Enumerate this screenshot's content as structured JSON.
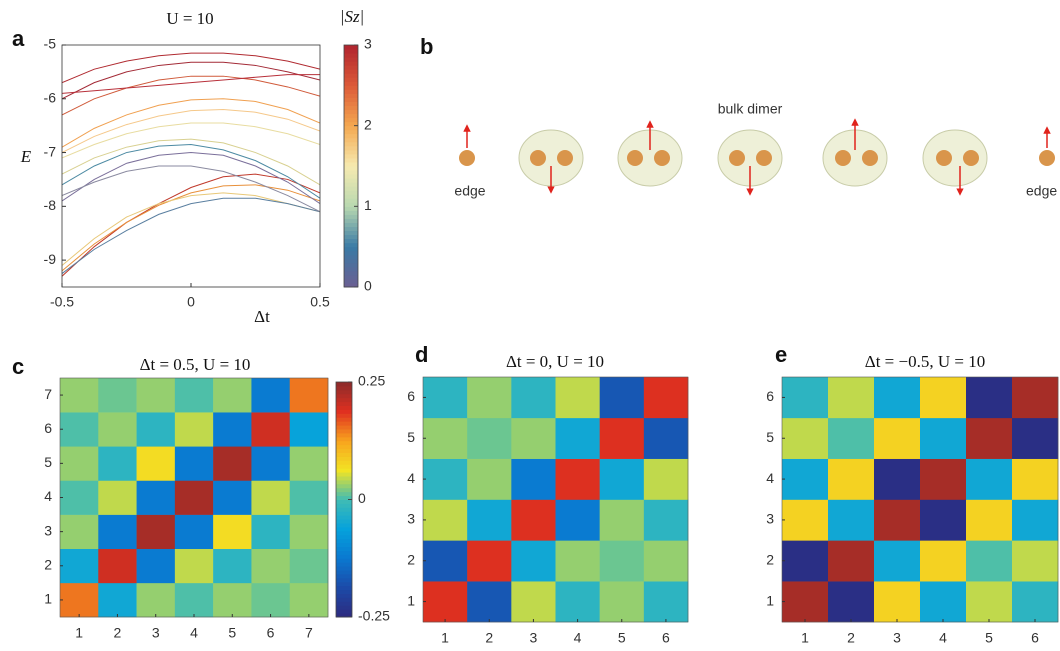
{
  "chart_data": [
    {
      "type": "line",
      "panel": "a",
      "title": "U = 10",
      "ylabel": "E",
      "xlabel": "Δt",
      "x": [
        -0.5,
        -0.375,
        -0.25,
        -0.125,
        0,
        0.125,
        0.25,
        0.375,
        0.5
      ],
      "xlim": [
        -0.5,
        0.5
      ],
      "xticks": [
        -0.5,
        0,
        0.5
      ],
      "ylim": [
        -9.5,
        -5
      ],
      "yticks": [
        -9,
        -8,
        -7,
        -6,
        -5
      ],
      "colorbar": {
        "label": "|Sz|",
        "lim": [
          0,
          3
        ],
        "ticks": [
          0,
          1,
          2,
          3
        ],
        "colormap": [
          "#6b5f92",
          "#3a7aa5",
          "#b8d8b0",
          "#f6eab0",
          "#f4a850",
          "#dc5a38",
          "#b0242e"
        ]
      },
      "series": [
        {
          "color": "#c0392b",
          "values": [
            -9.3,
            -8.75,
            -8.3,
            -7.95,
            -7.65,
            -7.45,
            -7.4,
            -7.5,
            -7.75
          ]
        },
        {
          "color": "#e8903a",
          "values": [
            -9.2,
            -8.7,
            -8.3,
            -7.98,
            -7.75,
            -7.62,
            -7.6,
            -7.7,
            -7.9
          ]
        },
        {
          "color": "#e8c878",
          "values": [
            -9.1,
            -8.6,
            -8.2,
            -7.95,
            -7.8,
            -7.75,
            -7.8,
            -7.95,
            -8.1
          ]
        },
        {
          "color": "#5a7fa0",
          "values": [
            -9.25,
            -8.8,
            -8.45,
            -8.15,
            -7.95,
            -7.85,
            -7.85,
            -7.95,
            -8.1
          ]
        },
        {
          "color": "#7a6f9a",
          "values": [
            -7.9,
            -7.5,
            -7.2,
            -7.05,
            -7.0,
            -7.05,
            -7.25,
            -7.55,
            -7.95
          ]
        },
        {
          "color": "#4c8aa3",
          "values": [
            -7.6,
            -7.25,
            -7.0,
            -6.88,
            -6.85,
            -6.95,
            -7.15,
            -7.45,
            -7.85
          ]
        },
        {
          "color": "#d8d090",
          "values": [
            -7.4,
            -7.1,
            -6.9,
            -6.78,
            -6.75,
            -6.82,
            -7.0,
            -7.25,
            -7.6
          ]
        },
        {
          "color": "#8a8aa0",
          "values": [
            -7.8,
            -7.55,
            -7.35,
            -7.25,
            -7.25,
            -7.35,
            -7.55,
            -7.8,
            -8.1
          ]
        },
        {
          "color": "#f0a050",
          "values": [
            -6.9,
            -6.55,
            -6.3,
            -6.12,
            -6.02,
            -6.0,
            -6.05,
            -6.2,
            -6.45
          ]
        },
        {
          "color": "#f5c88a",
          "values": [
            -7.0,
            -6.7,
            -6.48,
            -6.32,
            -6.22,
            -6.2,
            -6.25,
            -6.38,
            -6.6
          ]
        },
        {
          "color": "#e8dca0",
          "values": [
            -7.1,
            -6.85,
            -6.65,
            -6.52,
            -6.45,
            -6.45,
            -6.52,
            -6.65,
            -6.85
          ]
        },
        {
          "color": "#b02a30",
          "values": [
            -5.7,
            -5.45,
            -5.3,
            -5.2,
            -5.15,
            -5.15,
            -5.2,
            -5.3,
            -5.45
          ]
        },
        {
          "color": "#a32a36",
          "values": [
            -6.0,
            -5.7,
            -5.5,
            -5.38,
            -5.32,
            -5.32,
            -5.38,
            -5.5,
            -5.65
          ]
        },
        {
          "color": "#d05a3a",
          "values": [
            -6.3,
            -6.0,
            -5.8,
            -5.65,
            -5.58,
            -5.58,
            -5.65,
            -5.78,
            -5.95
          ]
        },
        {
          "color": "#b8303a",
          "values": [
            -5.9,
            -5.85,
            -5.8,
            -5.75,
            -5.7,
            -5.65,
            -5.6,
            -5.55,
            -5.55
          ]
        }
      ]
    },
    {
      "type": "heatmap",
      "panel": "c",
      "title": "Δt = 0.5, U = 10",
      "xlim": [
        0.5,
        7.5
      ],
      "ylim": [
        0.5,
        7.5
      ],
      "xticks": [
        1,
        2,
        3,
        4,
        5,
        6,
        7
      ],
      "yticks": [
        1,
        2,
        3,
        4,
        5,
        6,
        7
      ],
      "colorbar": {
        "lim": [
          -0.25,
          0.25
        ],
        "ticks": [
          0.25,
          0,
          -0.25
        ],
        "colormap": [
          "#2d2a7e",
          "#1c4aa8",
          "#0a78d0",
          "#05a2dc",
          "#40bcb4",
          "#f2e424",
          "#f8a41e",
          "#e03020",
          "#8b2b2b"
        ]
      },
      "values": [
        [
          0.15,
          -0.05,
          0.03,
          0.005,
          0.03,
          0.015,
          0.03
        ],
        [
          -0.05,
          0.2,
          -0.12,
          0.045,
          -0.02,
          0.03,
          0.015
        ],
        [
          0.03,
          -0.12,
          0.23,
          -0.12,
          0.07,
          -0.02,
          0.03
        ],
        [
          0.005,
          0.045,
          -0.12,
          0.23,
          -0.12,
          0.045,
          0.005
        ],
        [
          0.03,
          -0.02,
          0.07,
          -0.12,
          0.23,
          -0.12,
          0.03
        ],
        [
          0.005,
          0.03,
          -0.02,
          0.045,
          -0.12,
          0.2,
          -0.06
        ],
        [
          0.03,
          0.015,
          0.03,
          0.005,
          0.03,
          -0.12,
          0.15
        ]
      ]
    },
    {
      "type": "heatmap",
      "panel": "d",
      "title": "Δt = 0, U = 10",
      "xlim": [
        0.5,
        6.5
      ],
      "ylim": [
        0.5,
        6.5
      ],
      "xticks": [
        1,
        2,
        3,
        4,
        5,
        6
      ],
      "yticks": [
        1,
        2,
        3,
        4,
        5,
        6
      ],
      "values": [
        [
          0.19,
          -0.17,
          0.045,
          -0.02,
          0.03,
          -0.02
        ],
        [
          -0.17,
          0.19,
          -0.05,
          0.03,
          0.015,
          0.03
        ],
        [
          0.045,
          -0.05,
          0.19,
          -0.12,
          0.03,
          -0.02
        ],
        [
          -0.02,
          0.03,
          -0.12,
          0.19,
          -0.05,
          0.045
        ],
        [
          0.03,
          0.015,
          0.03,
          -0.05,
          0.19,
          -0.17
        ],
        [
          -0.02,
          0.03,
          -0.02,
          0.045,
          -0.17,
          0.19
        ]
      ]
    },
    {
      "type": "heatmap",
      "panel": "e",
      "title": "Δt = −0.5, U = 10",
      "xlim": [
        0.5,
        6.5
      ],
      "ylim": [
        0.5,
        6.5
      ],
      "xticks": [
        1,
        2,
        3,
        4,
        5,
        6
      ],
      "yticks": [
        1,
        2,
        3,
        4,
        5,
        6
      ],
      "values": [
        [
          0.23,
          -0.24,
          0.08,
          -0.05,
          0.045,
          -0.02
        ],
        [
          -0.24,
          0.23,
          -0.05,
          0.08,
          0.005,
          0.045
        ],
        [
          0.08,
          -0.05,
          0.23,
          -0.24,
          0.08,
          -0.05
        ],
        [
          -0.05,
          0.08,
          -0.24,
          0.23,
          -0.05,
          0.08
        ],
        [
          0.045,
          0.005,
          0.08,
          -0.05,
          0.23,
          -0.24
        ],
        [
          -0.02,
          0.045,
          -0.05,
          0.08,
          -0.24,
          0.23
        ]
      ]
    }
  ],
  "diagram": {
    "panel": "b",
    "title": "bulk dimer",
    "left_label": "edge",
    "right_label": "edge"
  }
}
